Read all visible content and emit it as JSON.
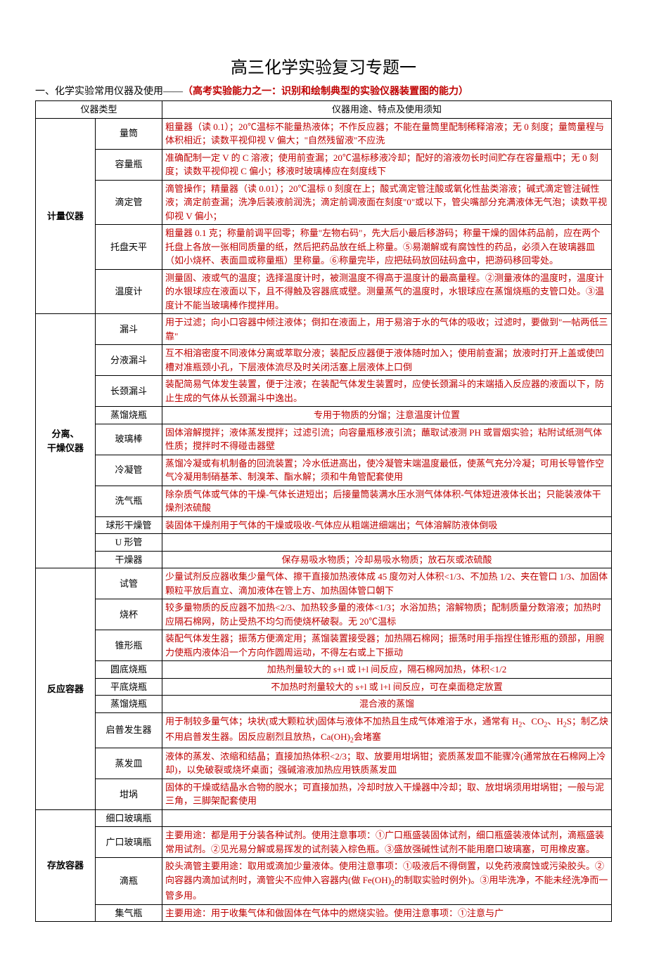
{
  "title": "高三化学实验复习专题一",
  "subtitle_black": "一、化学实验常用仪器及使用——",
  "subtitle_red": "（高考实验能力之一：识别和绘制典型的实验仪器装置图的能力）",
  "header": {
    "cat": "仪器类型",
    "desc": "仪器用途、特点及使用须知"
  },
  "sections": [
    {
      "category": "计量仪器",
      "items": [
        {
          "name": "量筒",
          "desc": "粗量器（读 0.1）；20℃温标不能量热液体；不作反应器；不能在量筒里配制稀释溶液；无 0 刻度；量筒量程与体积相近；读数平视仰视 V 偏大；\"自然残留液\"不应洗"
        },
        {
          "name": "容量瓶",
          "desc": "准确配制一定 V 的 C 溶液；使用前查漏；20℃温标移液冷却；配好的溶液勿长时间贮存在容量瓶中；无 0 刻度；读数平视仰视 C 偏小；移液时玻璃棒应在刻度线下"
        },
        {
          "name": "滴定管",
          "desc": "滴管操作；精量器（读 0.01）；20℃温标 0 刻度在上；酸式滴定管注酸或氧化性盐类溶液；碱式滴定管注碱性液；滴定前查漏；洗净后装液前润洗；滴定前调液面在刻度\"0\"或以下，管尖嘴部分充满液体无气泡；读数平视仰视 V 偏小；"
        },
        {
          "name": "托盘天平",
          "desc": "粗量器 0.1 克；称量前调平回零；称量\"左物右码\"，先大后小最后移游码；称量干燥的固体药品前，应在两个托盘上各放一张相同质量的纸，然后把药品放在纸上称量。⑤易潮解或有腐蚀性的药品，必须入在玻璃器皿（如小烧杯、表面皿或称量瓶）里称量。⑥称量完毕，应把砝码放回砝码盒中，把游码移回零处。"
        },
        {
          "name": "温度计",
          "desc": "测量固、液或气的温度；选择温度计时，被测温度不得高于温度计的最高量程。②测量液体的温度时，温度计的水银球应在液面以下，且不得触及容器底或壁。测量蒸气的温度时，水银球应在蒸馏烧瓶的支管口处。③温度计不能当玻璃棒作搅拌用。"
        }
      ]
    },
    {
      "category": "分离、\n干燥仪器",
      "items": [
        {
          "name": "漏斗",
          "desc": "用于过滤；向小口容器中倾注液体；倒扣在液面上，用于易溶于水的气体的吸收；过滤时，要做到\"一帖两低三靠\""
        },
        {
          "name": "分液漏斗",
          "desc": "互不相溶密度不同液体分离或萃取分液；装配反应器便于液体随时加入；使用前查漏；放液时打开上盖或使凹槽对准瓶颈小孔，下层液体流尽及时关闭活塞上层液体上口倒"
        },
        {
          "name": "长颈漏斗",
          "desc": "装配简易气体发生装置，便于注液；在装配气体发生装置时，应使长颈漏斗的末端插入反应器的液面以下，防止生成的气体从长颈漏斗中逸出。"
        },
        {
          "name": "蒸馏烧瓶",
          "desc": "专用于物质的分馏；注意温度计位置",
          "center": true
        },
        {
          "name": "玻璃棒",
          "desc": "固体溶解搅拌；液体蒸发搅拌；过滤引流；向容量瓶移液引流；蘸取试液测 PH 或冒烟实验；粘附试纸测气体性质；搅拌时不得碰击器壁"
        },
        {
          "name": "冷凝管",
          "desc": "蒸馏冷凝或有机制备的回流装置；冷水低进高出，使冷凝管末端温度最低，使蒸气充分冷凝；可用长导管作空气冷凝用制硝基苯、制溴苯、酯水解；须和牛角管配套使用"
        },
        {
          "name": "洗气瓶",
          "desc": "除杂质气体或气体的干燥-气体长进短出；后接量筒装满水压水测气体体积-气体短进液体长出；只能装液体干燥剂浓硫酸"
        },
        {
          "name": "球形干燥管",
          "desc": "装固体干燥剂用于气体的干燥或吸收-气体应从粗端进细端出；气体溶解防液体倒吸"
        },
        {
          "name": "U 形管",
          "desc": ""
        },
        {
          "name": "干燥器",
          "desc": "保存易吸水物质；冷却易吸水物质；放石灰或浓硫酸",
          "center": true
        }
      ]
    },
    {
      "category": "反应容器",
      "items": [
        {
          "name": "试管",
          "desc": "少量试剂反应器收集少量气体、擦干直接加热液体成 45 度勿对人体积<1/3、不加热 1/2、夹在管口 1/3、加固体颗粒平放后直立、滴加液体在管上方、加热固体管口朝下"
        },
        {
          "name": "烧杯",
          "desc": "较多量物质的反应器不加热<2/3、加热较多量的液体<1/3；水浴加热；溶解物质；配制质量分数溶液；加热时应隔石棉网，防止受热不均匀而使烧杯破裂。无 20℃温标"
        },
        {
          "name": "锥形瓶",
          "desc": "装配气体发生器；振荡方便滴定用；蒸馏装置接受器；加热隔石棉网；振荡时用手指捏住锥形瓶的颈部，用腕力使瓶内液体沿一个方向作圆周运动，不得左右或上下振动"
        },
        {
          "name": "圆底烧瓶",
          "desc": "加热剂量较大的 s+l 或 l+l 间反应，隔石棉网加热，体积<1/2",
          "center": true
        },
        {
          "name": "平底烧瓶",
          "desc": "不加热时剂量较大的 s+l 或 l+l 间反应，可在桌面稳定放置",
          "center": true
        },
        {
          "name": "蒸馏烧瓶",
          "desc": "混合液的蒸馏",
          "center": true
        },
        {
          "name": "启普发生器",
          "desc": "用于制较多量气体；块状(或大颗粒状)固体与液体不加热且生成气体难溶于水，通常有 H₂、CO₂、H₂S；制乙炔不用启普发生器。因反应剧烈且放热，Ca(OH)₂会堵塞"
        },
        {
          "name": "蒸发皿",
          "desc": "液体的蒸发、浓缩和结晶；直接加热体积<2/3；取、放要用坩埚钳；瓷质蒸发皿不能骤冷(通常放在石棉网上冷却)，以免破裂或烧坏桌面；强碱溶液加热应用铁质蒸发皿"
        },
        {
          "name": "坩埚",
          "desc": "固体的干燥或结晶水合物的脱水；可直接加热，冷却时放入干燥器中冷却；取、放坩埚须用坩埚钳；一般与泥三角，三脚架配套使用"
        }
      ]
    },
    {
      "category": "存放容器",
      "items": [
        {
          "name": "细口玻璃瓶",
          "desc": ""
        },
        {
          "name": "广口玻璃瓶",
          "desc": "主要用途：都是用于分装各种试剂。使用注意事项：①广口瓶盛装固体试剂，细口瓶盛装液体试剂，滴瓶盛装常用试剂。②见光易分解或易挥发的试剂装入棕色瓶。③盛放强碱性试剂不能用磨口玻璃塞，可用橡皮塞。"
        },
        {
          "name": "滴瓶",
          "desc": "胶头滴管主要用途：取用或滴加少量液体。使用注意事项：①吸液后不得倒置，以免药液腐蚀或污染胶头。②向容器内滴加试剂时，滴管尖不应伸入容器内(做 Fe(OH)₂的制取实验时例外)。③用毕洗净，不能未经洗净而一管多用。"
        },
        {
          "name": "集气瓶",
          "desc": "主要用途：用于收集气体和做固体在气体中的燃烧实验。使用注意事项：①注意与广"
        }
      ]
    }
  ]
}
